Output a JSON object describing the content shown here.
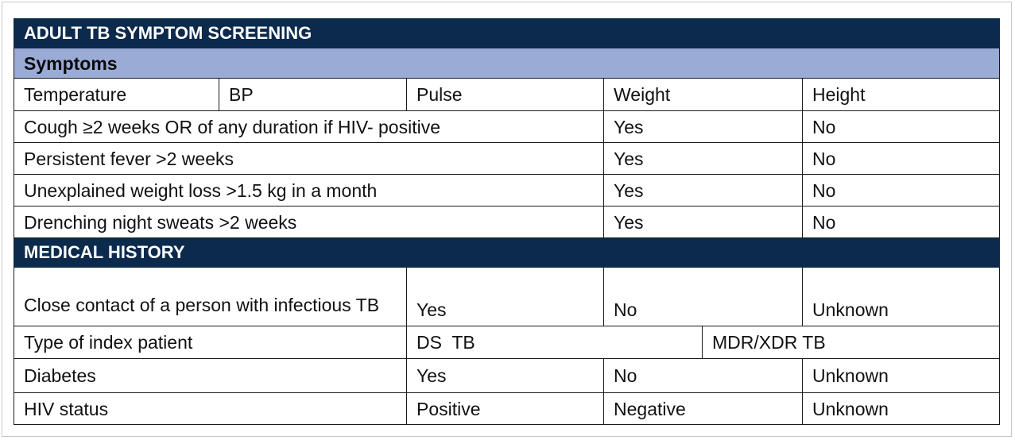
{
  "title": "ADULT TB SYMPTOM SCREENING",
  "symptoms_header": "Symptoms",
  "vitals": [
    "Temperature",
    "BP",
    "Pulse",
    "Weight",
    "Height"
  ],
  "symptoms": [
    {
      "label": "Cough ≥2 weeks OR of any duration if HIV- positive",
      "yes": "Yes",
      "no": "No"
    },
    {
      "label": "Persistent fever >2 weeks",
      "yes": "Yes",
      "no": "No"
    },
    {
      "label": "Unexplained weight loss >1.5 kg in a month",
      "yes": "Yes",
      "no": "No"
    },
    {
      "label": "Drenching night sweats >2 weeks",
      "yes": "Yes",
      "no": "No"
    }
  ],
  "medical_history_title": "MEDICAL HISTORY",
  "close_contact": {
    "label": "Close contact of a person with infectious TB",
    "yes": "Yes",
    "no": "No",
    "unknown": "Unknown"
  },
  "index_patient": {
    "label": "Type of index patient",
    "ds": "DS  TB",
    "mdr": "MDR/XDR TB"
  },
  "diabetes": {
    "label": "Diabetes",
    "yes": "Yes",
    "no": "No",
    "unknown": "Unknown"
  },
  "hiv_status": {
    "label": "HIV status",
    "positive": "Positive",
    "negative": "Negative",
    "unknown": "Unknown"
  },
  "colors": {
    "header_bg": "#0b2a4c",
    "subheader_bg": "#9aabd6",
    "border": "#1a1a1a"
  }
}
